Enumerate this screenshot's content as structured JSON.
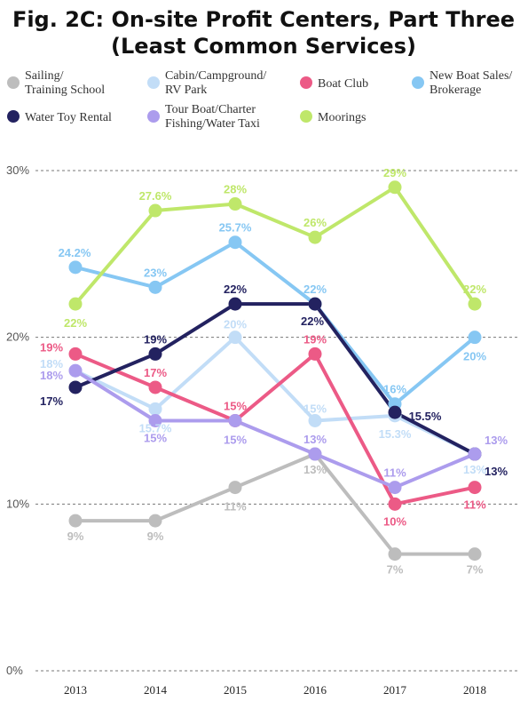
{
  "title_line1": "Fig. 2C: On-site Profit Centers, Part Three",
  "title_line2": "(Least Common Services)",
  "chart_data": {
    "type": "line",
    "x": [
      "2013",
      "2014",
      "2015",
      "2016",
      "2017",
      "2018"
    ],
    "ylim": [
      0,
      30
    ],
    "yticks": [
      "0%",
      "10%",
      "20%",
      "30%"
    ],
    "grid": true,
    "legend_position": "top",
    "series": [
      {
        "name": "Sailing/\nTraining School",
        "color": "#bdbdbd",
        "values": [
          9,
          9,
          11,
          13,
          7,
          7
        ],
        "labels": [
          "9%",
          "9%",
          "11%",
          "13%",
          "7%",
          "7%"
        ]
      },
      {
        "name": "Cabin/Campground/\nRV Park",
        "color": "#c2ddf7",
        "values": [
          18,
          15.7,
          20,
          15,
          15.3,
          13
        ],
        "labels": [
          "18%",
          "15.7%",
          "20%",
          "15%",
          "15.3%",
          "13%"
        ]
      },
      {
        "name": "Boat Club",
        "color": "#ec5a86",
        "values": [
          19,
          17,
          15,
          19,
          10,
          11
        ],
        "labels": [
          "19%",
          "17%",
          "15%",
          "19%",
          "10%",
          "11%"
        ]
      },
      {
        "name": "New Boat Sales/\nBrokerage",
        "color": "#86c7f3",
        "values": [
          24.2,
          23,
          25.7,
          22,
          16,
          20
        ],
        "labels": [
          "24.2%",
          "23%",
          "25.7%",
          "22%",
          "16%",
          "20%"
        ]
      },
      {
        "name": "Water Toy Rental",
        "color": "#232260",
        "values": [
          17,
          19,
          22,
          22,
          15.5,
          13
        ],
        "labels": [
          "17%",
          "19%",
          "22%",
          "22%",
          "15.5%",
          "13%"
        ]
      },
      {
        "name": "Tour Boat/Charter\nFishing/Water Taxi",
        "color": "#ac9ced",
        "values": [
          18,
          15,
          15,
          13,
          11,
          13
        ],
        "labels": [
          "18%",
          "15%",
          "15%",
          "13%",
          "11%",
          "13%"
        ]
      },
      {
        "name": "Moorings",
        "color": "#bfe76a",
        "values": [
          22,
          27.6,
          28,
          26,
          29,
          22
        ],
        "labels": [
          "22%",
          "27.6%",
          "28%",
          "26%",
          "29%",
          "22%"
        ]
      }
    ]
  }
}
